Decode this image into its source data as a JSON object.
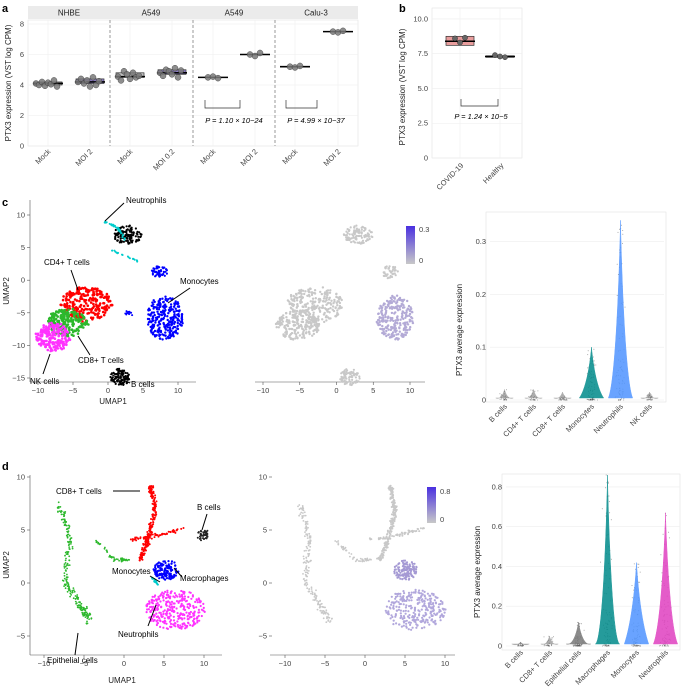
{
  "panel_labels": {
    "a": "a",
    "b": "b",
    "c": "c",
    "d": "d"
  },
  "colors": {
    "mock": "#c3c3c3",
    "infected": "#8f80c9",
    "covid": "#e89d9d",
    "cd4": "#ff0000",
    "cd8": "#2db82d",
    "nk": "#ff33ff",
    "mono": "#0000ff",
    "neut": "#000000",
    "bcell": "#000000",
    "cyan": "#00cccc",
    "grey": "#c8c8c8",
    "expr_high": "#5a40e0",
    "violin_mono": "#008a8a",
    "violin_neut": "#4f94ff",
    "violin_neut_d": "#e040c0"
  },
  "panel_a": {
    "ylabel": "PTX3 expression (VST log CPM)",
    "ytick_labels": [
      "0",
      "2",
      "4",
      "6",
      "8"
    ],
    "groups": [
      {
        "title": "NHBE",
        "x_labels": [
          "Mock",
          "MOI 2"
        ]
      },
      {
        "title": "A549",
        "x_labels": [
          "Mock",
          "MOI 0.2"
        ]
      },
      {
        "title": "A549",
        "x_labels": [
          "Mock",
          "MOI 2"
        ],
        "pvalue": "P = 1.10 × 10^−24"
      },
      {
        "title": "Calu-3",
        "x_labels": [
          "Mock",
          "MOI 2"
        ],
        "pvalue": "P = 4.99 × 10^−37"
      }
    ],
    "pvalue_1": "P = 1.10 × 10−24",
    "pvalue_2": "P = 4.99 × 10−37"
  },
  "panel_b": {
    "ylabel": "PTX3 expression (VST log CPM)",
    "ytick_labels": [
      "0",
      "2.5",
      "5.0",
      "7.5",
      "10.0"
    ],
    "x_labels": [
      "COVID-19",
      "Healthy"
    ],
    "pvalue": "P = 1.24 × 10−5"
  },
  "panel_c": {
    "xlabel": "UMAP1",
    "ylabel": "UMAP2",
    "xtick_labels": [
      "−10",
      "−5",
      "0",
      "5",
      "10"
    ],
    "ytick_labels": [
      "10",
      "5",
      "0",
      "−5",
      "−10",
      "−15"
    ],
    "cluster_labels": {
      "neutrophils": "Neutrophils",
      "cd4": "CD4+ T cells",
      "monocytes": "Monocytes",
      "cd8": "CD8+ T cells",
      "nk": "NK cells",
      "bcells": "B cells"
    },
    "colorbar_labels": [
      "0.3",
      "0"
    ],
    "violin_ylabel": "PTX3 average expression",
    "violin_ytick_labels": [
      "0",
      "0.1",
      "0.2",
      "0.3"
    ],
    "violin_categories": [
      "B cells",
      "CD4+ T cells",
      "CD8+ T cells",
      "Monocytes",
      "Neutrophils",
      "NK cells"
    ]
  },
  "panel_d": {
    "xlabel": "UMAP1",
    "ylabel": "UMAP2",
    "xtick_labels": [
      "−10",
      "−5",
      "0",
      "5",
      "10"
    ],
    "ytick_labels": [
      "10",
      "5",
      "0",
      "−5"
    ],
    "cluster_labels": {
      "cd8": "CD8+ T cells",
      "bcells": "B cells",
      "monocytes": "Monocytes",
      "macrophages": "Macrophages",
      "epithelial": "Epithelial cells",
      "neutrophils": "Neutrophils"
    },
    "colorbar_labels": [
      "0.8",
      "0"
    ],
    "violin_ylabel": "PTX3 average expression",
    "violin_ytick_labels": [
      "0",
      "0.2",
      "0.4",
      "0.6",
      "0.8"
    ],
    "violin_categories": [
      "B cells",
      "CD8+ T cells",
      "Epithelial cells",
      "Macrophages",
      "Monocytes",
      "Neutrophils"
    ]
  },
  "chart_data": [
    {
      "type": "box",
      "title": "",
      "ylabel": "PTX3 expression (VST log CPM)",
      "ylim": [
        0,
        8
      ],
      "facets": [
        "NHBE",
        "A549",
        "A549",
        "Calu-3"
      ],
      "categories": [
        "Mock",
        "MOI 2",
        "Mock",
        "MOI 0.2",
        "Mock",
        "MOI 2",
        "Mock",
        "MOI 2"
      ],
      "medians": [
        4.1,
        4.2,
        4.55,
        4.8,
        4.5,
        6.0,
        5.2,
        7.5
      ],
      "points": [
        [
          4.1,
          4.0,
          4.2,
          3.95,
          4.15,
          4.05,
          4.3,
          3.9
        ],
        [
          4.2,
          4.4,
          4.1,
          4.3,
          3.9,
          4.5,
          4.0,
          4.25
        ],
        [
          4.55,
          4.3,
          4.9,
          4.7,
          4.4,
          4.8,
          4.5,
          4.6
        ],
        [
          4.8,
          4.6,
          5.0,
          4.9,
          4.7,
          5.1,
          4.5,
          4.95
        ],
        [
          4.5,
          4.55,
          4.45
        ],
        [
          6.0,
          5.9,
          6.1
        ],
        [
          5.2,
          5.15,
          5.25
        ],
        [
          7.5,
          7.45,
          7.55
        ]
      ]
    },
    {
      "type": "box",
      "ylabel": "PTX3 expression (VST log CPM)",
      "ylim": [
        0,
        10.5
      ],
      "categories": [
        "COVID-19",
        "Healthy"
      ],
      "medians": [
        8.4,
        7.3
      ],
      "q1": [
        8.1,
        7.25
      ],
      "q3": [
        8.75,
        7.35
      ],
      "points": [
        [
          8.6,
          8.3,
          8.65
        ],
        [
          7.4,
          7.3,
          7.25
        ]
      ]
    },
    {
      "type": "violin",
      "ylabel": "PTX3 average expression",
      "ylim": [
        0,
        0.35
      ],
      "categories": [
        "B cells",
        "CD4+ T cells",
        "CD8+ T cells",
        "Monocytes",
        "Neutrophils",
        "NK cells"
      ],
      "max_values": [
        0.02,
        0.02,
        0.015,
        0.1,
        0.34,
        0.015
      ],
      "medians": [
        0.0,
        0.0,
        0.0,
        0.02,
        0.03,
        0.0
      ]
    },
    {
      "type": "violin",
      "ylabel": "PTX3 average expression",
      "ylim": [
        0,
        0.85
      ],
      "categories": [
        "B cells",
        "CD8+ T cells",
        "Epithelial cells",
        "Macrophages",
        "Monocytes",
        "Neutrophils"
      ],
      "max_values": [
        0.02,
        0.05,
        0.12,
        0.86,
        0.42,
        0.67
      ],
      "medians": [
        0.0,
        0.0,
        0.0,
        0.02,
        0.1,
        0.08
      ]
    }
  ]
}
